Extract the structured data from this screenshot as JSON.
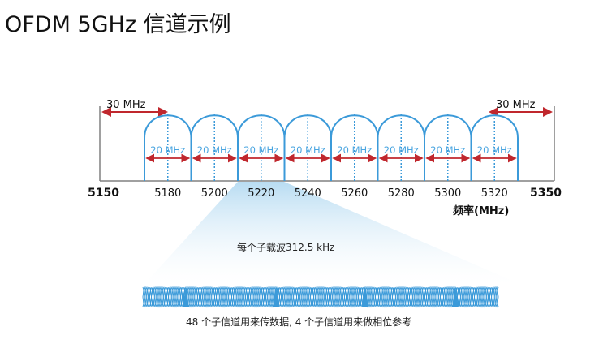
{
  "title": "OFDM 5GHz 信道示例",
  "guard_band_label_left": "30 MHz",
  "guard_band_label_right": "30 MHz",
  "channels": [
    {
      "freq": "5180",
      "width_label": "20 MHz"
    },
    {
      "freq": "5200",
      "width_label": "20 MHz"
    },
    {
      "freq": "5220",
      "width_label": "20 MHz"
    },
    {
      "freq": "5240",
      "width_label": "20 MHz"
    },
    {
      "freq": "5260",
      "width_label": "20 MHz"
    },
    {
      "freq": "5280",
      "width_label": "20 MHz"
    },
    {
      "freq": "5300",
      "width_label": "20 MHz"
    },
    {
      "freq": "5320",
      "width_label": "20 MHz"
    }
  ],
  "band_edges": {
    "low": "5150",
    "high": "5350"
  },
  "axis_unit_label": "频率(MHz)",
  "subcarrier_spacing_caption": "每个子载波312.5 kHz",
  "subcarrier_usage_caption": "48 个子信道用来传数据, 4 个子信道用来做相位参考",
  "zoomed_channel": "5220",
  "colors": {
    "channel_stroke": "#3b9ad9",
    "channel_dotted": "#3b9ad9",
    "width_arrow": "#c0272d",
    "guard_arrow": "#c0272d",
    "width_text": "#4aa5e0",
    "axis": "#808080",
    "fan_light": "#e6f3fb",
    "fan_dark": "#b8dcf2",
    "pilot_fill": "#3b9ad9"
  }
}
